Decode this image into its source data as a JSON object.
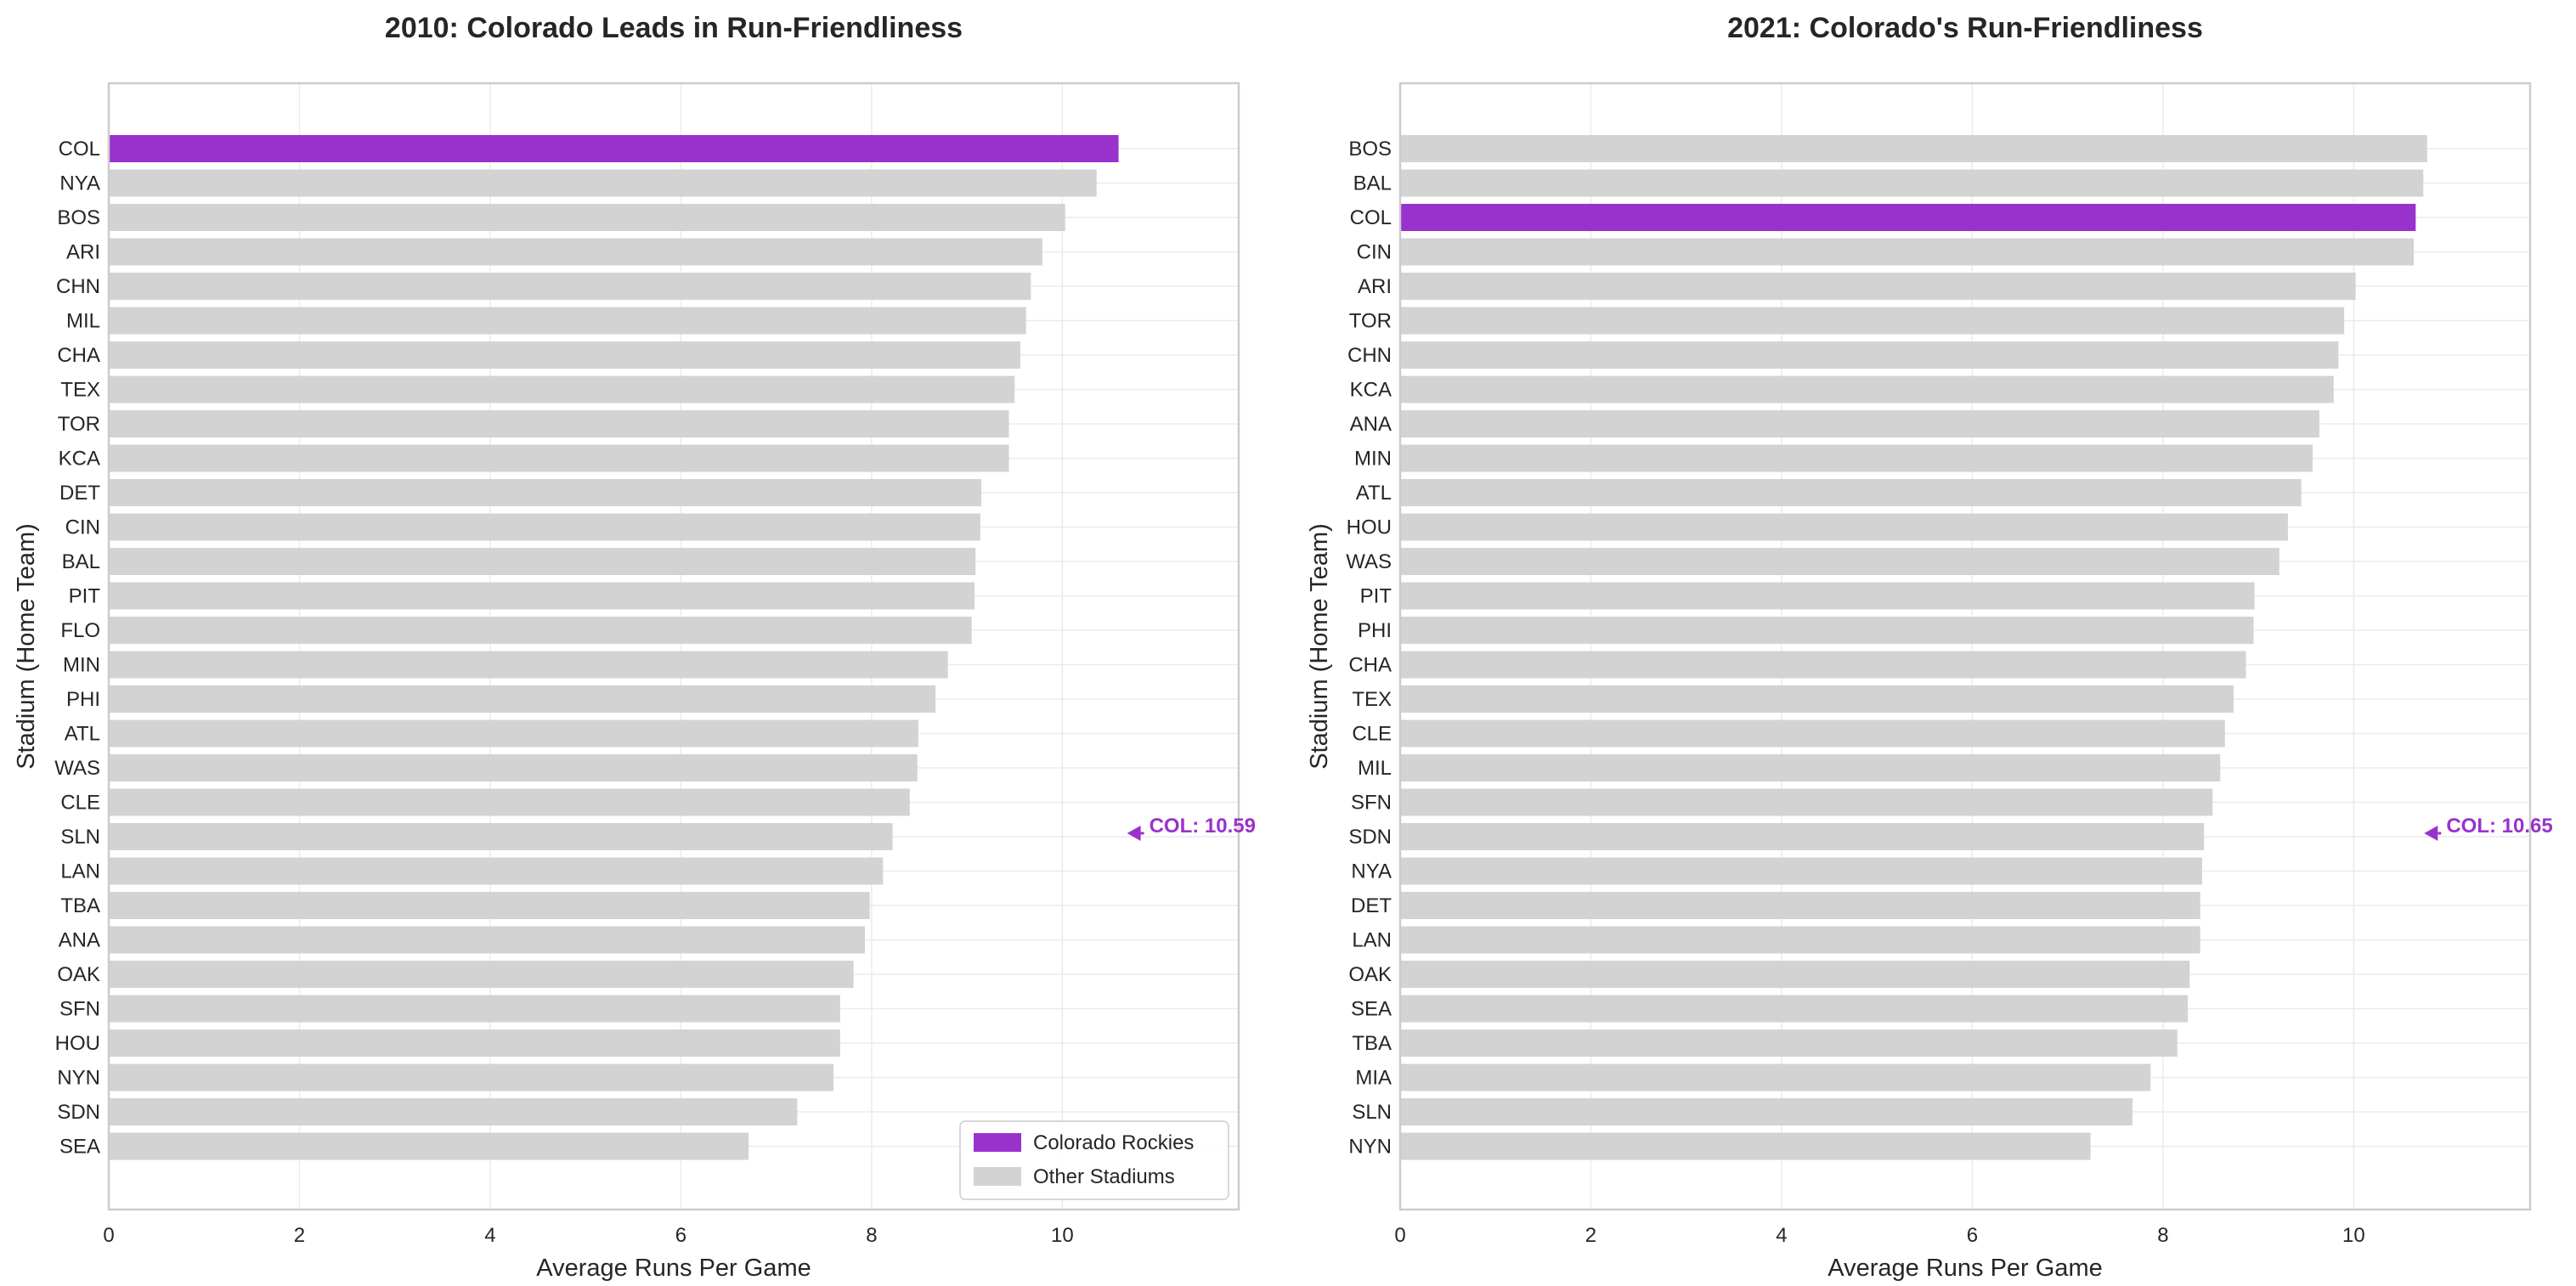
{
  "colors": {
    "highlight": "#9932CC",
    "other": "#D3D3D3",
    "grid": "#EBEBEB",
    "frame": "#CCCCCC",
    "text": "#262626"
  },
  "chart_data": [
    {
      "type": "bar",
      "orientation": "horizontal",
      "title": "2010: Colorado Leads in Run-Friendliness",
      "xlabel": "Average Runs Per Game",
      "ylabel": "Stadium (Home Team)",
      "xlim": [
        0,
        11.85
      ],
      "xticks": [
        0,
        2,
        4,
        6,
        8,
        10
      ],
      "grid": true,
      "legend": {
        "placement": "bottom-right",
        "entries": [
          {
            "label": "Colorado Rockies",
            "color": "#9932CC"
          },
          {
            "label": "Other Stadiums",
            "color": "#D3D3D3"
          }
        ]
      },
      "highlight": "COL",
      "annotation": {
        "text": "COL: 10.59",
        "target": "COL"
      },
      "categories": [
        "COL",
        "NYA",
        "BOS",
        "ARI",
        "CHN",
        "MIL",
        "CHA",
        "TEX",
        "TOR",
        "KCA",
        "DET",
        "CIN",
        "BAL",
        "PIT",
        "FLO",
        "MIN",
        "PHI",
        "ATL",
        "WAS",
        "CLE",
        "SLN",
        "LAN",
        "TBA",
        "ANA",
        "OAK",
        "SFN",
        "HOU",
        "NYN",
        "SDN",
        "SEA"
      ],
      "values": [
        10.59,
        10.36,
        10.03,
        9.79,
        9.67,
        9.62,
        9.56,
        9.5,
        9.44,
        9.44,
        9.15,
        9.14,
        9.09,
        9.08,
        9.05,
        8.8,
        8.67,
        8.49,
        8.48,
        8.4,
        8.22,
        8.12,
        7.98,
        7.93,
        7.81,
        7.67,
        7.67,
        7.6,
        7.22,
        6.71
      ]
    },
    {
      "type": "bar",
      "orientation": "horizontal",
      "title": "2021: Colorado's Run-Friendliness",
      "xlabel": "Average Runs Per Game",
      "ylabel": "Stadium (Home Team)",
      "xlim": [
        0,
        11.85
      ],
      "xticks": [
        0,
        2,
        4,
        6,
        8,
        10
      ],
      "grid": true,
      "highlight": "COL",
      "annotation": {
        "text": "COL: 10.65",
        "target": "COL"
      },
      "categories": [
        "BOS",
        "BAL",
        "COL",
        "CIN",
        "ARI",
        "TOR",
        "CHN",
        "KCA",
        "ANA",
        "MIN",
        "ATL",
        "HOU",
        "WAS",
        "PIT",
        "PHI",
        "CHA",
        "TEX",
        "CLE",
        "MIL",
        "SFN",
        "SDN",
        "NYA",
        "DET",
        "LAN",
        "OAK",
        "SEA",
        "TBA",
        "MIA",
        "SLN",
        "NYN"
      ],
      "values": [
        10.77,
        10.73,
        10.65,
        10.63,
        10.02,
        9.9,
        9.84,
        9.79,
        9.64,
        9.57,
        9.45,
        9.31,
        9.22,
        8.96,
        8.95,
        8.87,
        8.74,
        8.65,
        8.6,
        8.52,
        8.43,
        8.41,
        8.39,
        8.39,
        8.28,
        8.26,
        8.15,
        7.87,
        7.68,
        7.24
      ]
    }
  ]
}
